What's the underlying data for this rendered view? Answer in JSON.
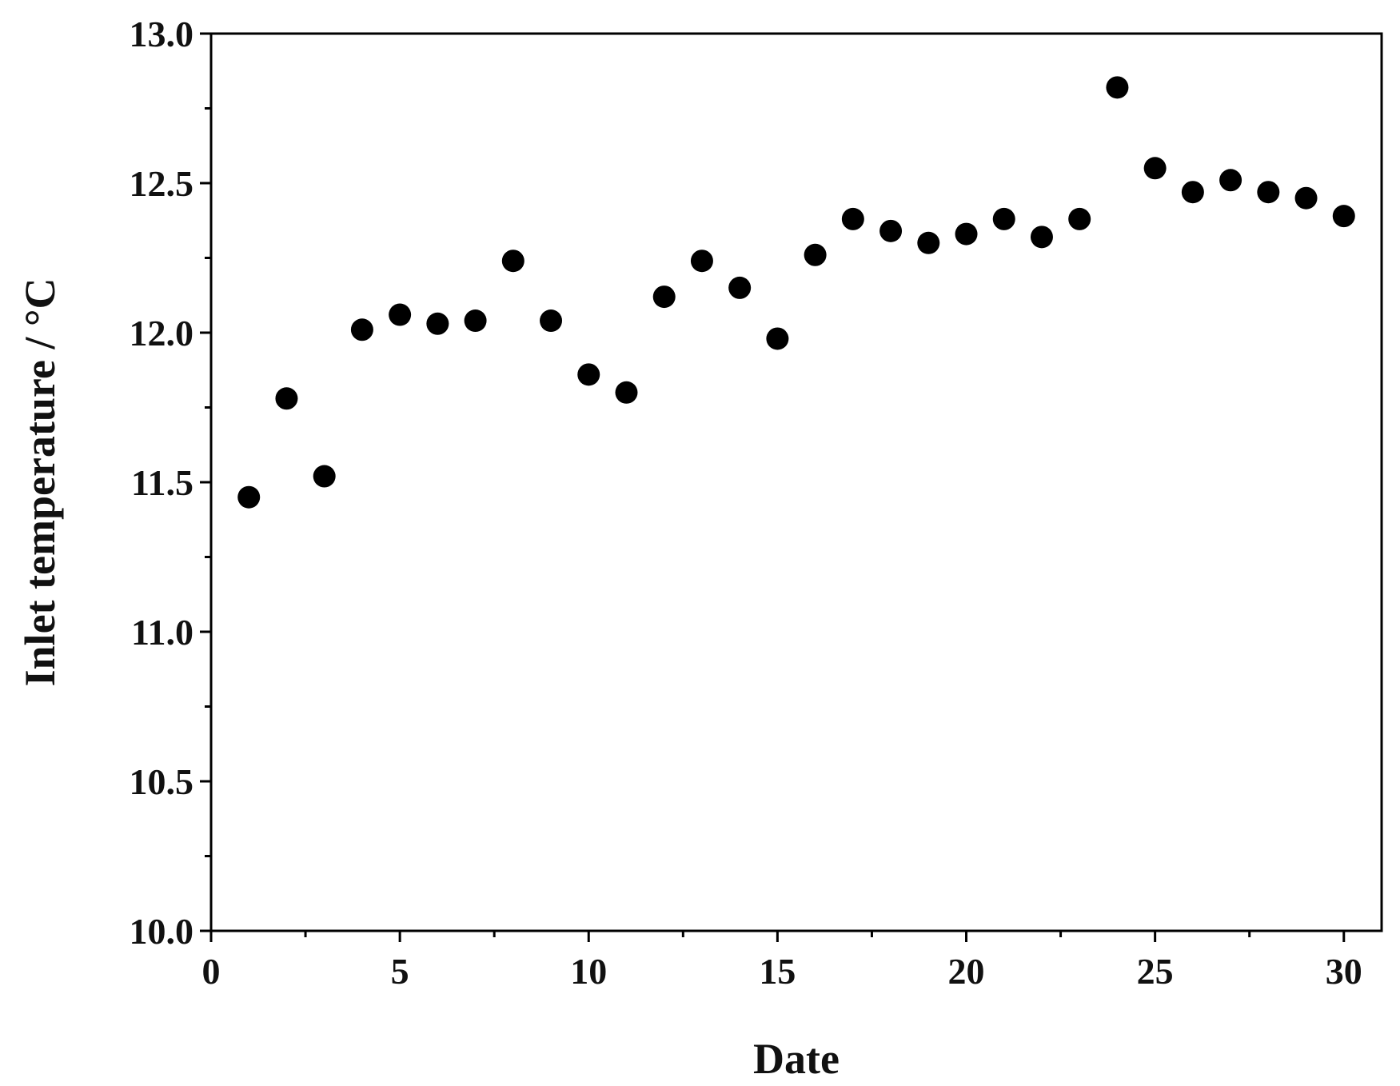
{
  "chart_data": {
    "type": "scatter",
    "title": "",
    "xlabel": "Date",
    "ylabel": "Inlet temperature / °C",
    "xlim": [
      0,
      31
    ],
    "ylim": [
      10.0,
      13.0
    ],
    "x_ticks": [
      0,
      5,
      10,
      15,
      20,
      25,
      30
    ],
    "x_tick_labels": [
      "0",
      "5",
      "10",
      "15",
      "20",
      "25",
      "30"
    ],
    "x_minor_step": 2.5,
    "y_ticks": [
      10.0,
      10.5,
      11.0,
      11.5,
      12.0,
      12.5,
      13.0
    ],
    "y_tick_labels": [
      "10.0",
      "10.5",
      "11.0",
      "11.5",
      "12.0",
      "12.5",
      "13.0"
    ],
    "y_minor_step": 0.25,
    "grid": false,
    "legend": "none",
    "marker_color": "#000000",
    "series": [
      {
        "x": [
          1,
          2,
          3,
          4,
          5,
          6,
          7,
          8,
          9,
          10,
          11,
          12,
          13,
          14,
          15,
          16,
          17,
          18,
          19,
          20,
          21,
          22,
          23,
          24,
          25,
          26,
          27,
          28,
          29,
          30
        ],
        "values": [
          11.45,
          11.78,
          11.52,
          12.01,
          12.06,
          12.03,
          12.04,
          12.24,
          12.04,
          11.86,
          11.8,
          12.12,
          12.24,
          12.15,
          11.98,
          12.26,
          12.38,
          12.34,
          12.3,
          12.33,
          12.38,
          12.32,
          12.38,
          12.82,
          12.55,
          12.47,
          12.51,
          12.47,
          12.45,
          12.39
        ]
      }
    ]
  }
}
